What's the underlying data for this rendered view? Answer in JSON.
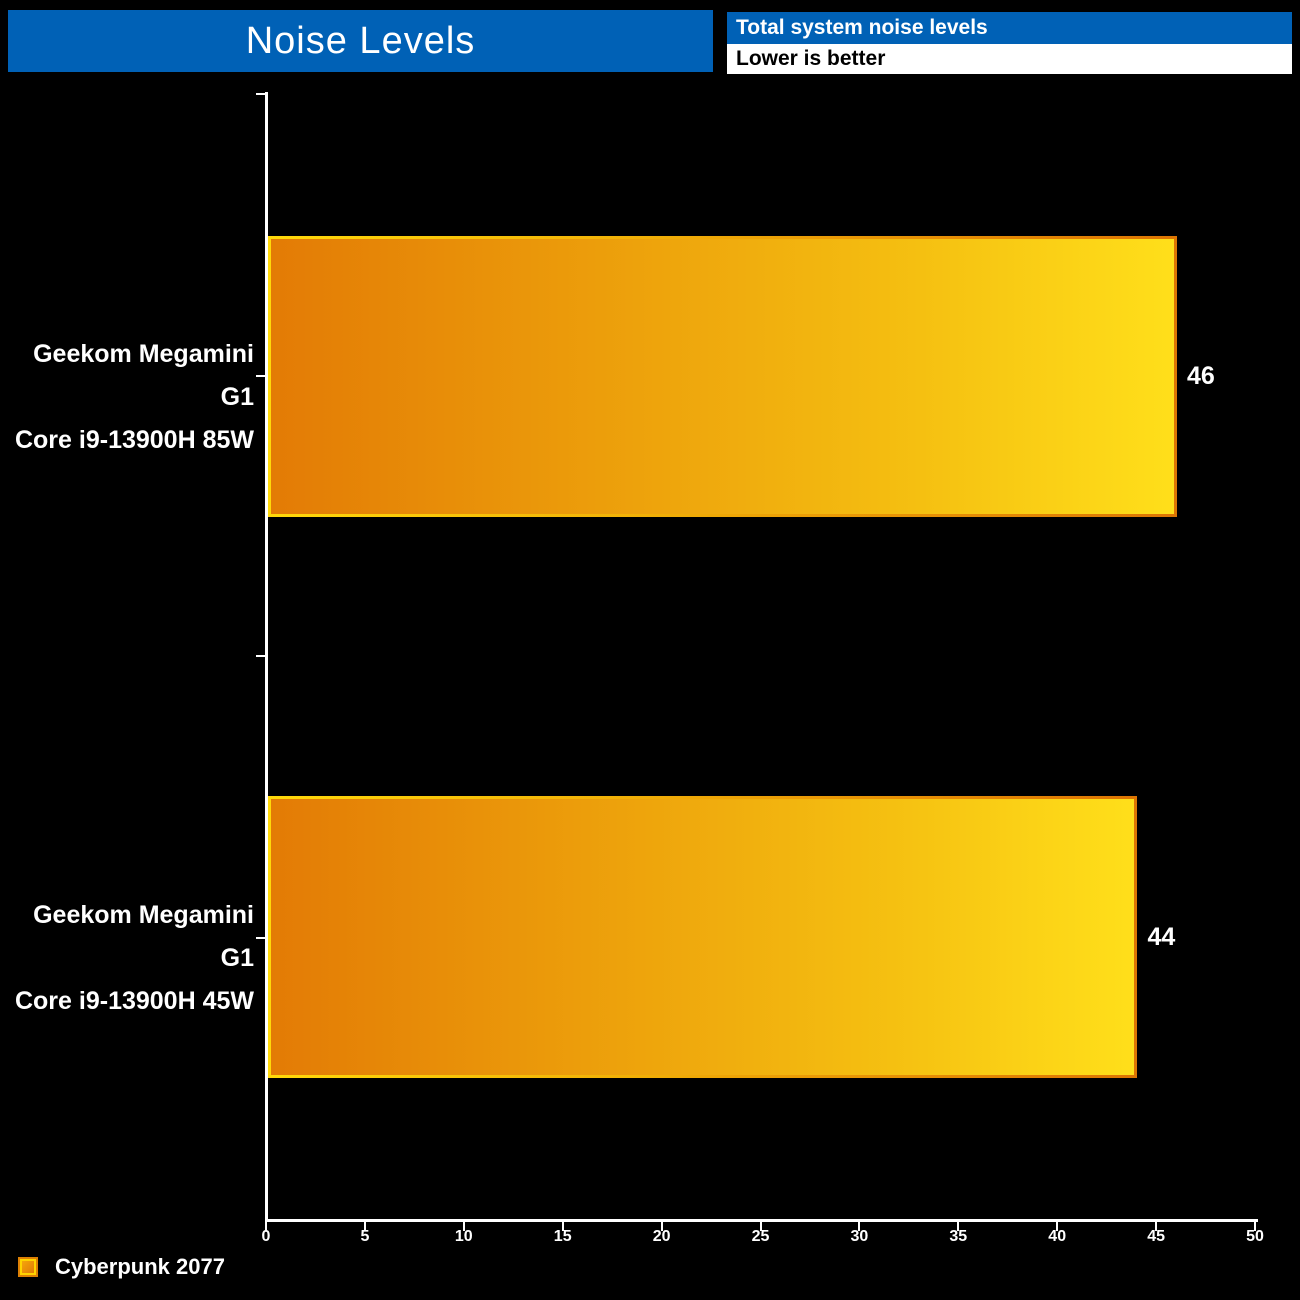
{
  "chart_data": {
    "type": "bar",
    "orientation": "horizontal",
    "title": "Noise Levels",
    "subtitle": "Total system noise levels",
    "note": "Lower is better",
    "series_name": "Cyberpunk 2077",
    "categories": [
      "Geekom Megamini G1 Core i9-13900H 85W",
      "Geekom Megamini G1 Core i9-13900H 45W"
    ],
    "values": [
      46,
      44
    ],
    "xlim": [
      0,
      50
    ],
    "xmax": 50,
    "x_tick_step": 5,
    "x_ticks": [
      "0",
      "5",
      "10",
      "15",
      "20",
      "25",
      "30",
      "35",
      "40",
      "45",
      "50"
    ],
    "grid": "off",
    "legend_position": "bottom-left",
    "bars": [
      {
        "label_line1": "Geekom Megamini G1",
        "label_line2": "Core i9-13900H 85W",
        "value": 46
      },
      {
        "label_line1": "Geekom Megamini G1",
        "label_line2": "Core i9-13900H 45W",
        "value": 44
      }
    ],
    "colors": {
      "background": "#000000",
      "header_blue": "#0061B6",
      "header_text": "#FFFFFF",
      "note_background": "#FFFFFF",
      "note_text": "#000000",
      "axis": "#FFFFFF",
      "label_text": "#FFFFFF",
      "bar_gradient_start": "#E37B05",
      "bar_gradient_end": "#FFDF1A",
      "bar_border_gradient_start": "#FFD90A",
      "bar_border_gradient_end": "#DD7503"
    }
  },
  "legend": {
    "label": "Cyberpunk 2077"
  }
}
